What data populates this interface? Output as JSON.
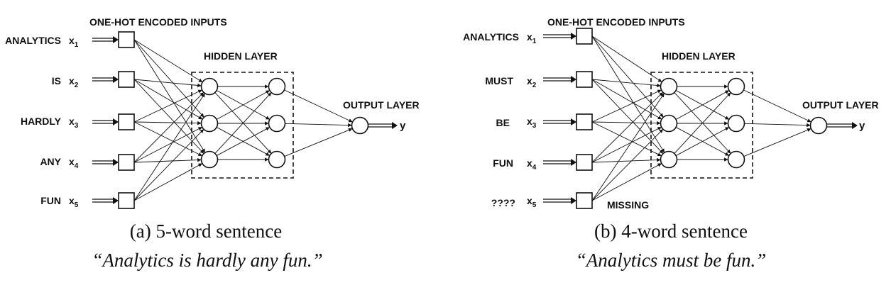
{
  "panels": [
    {
      "id": "a",
      "inputs_title": "ONE-HOT ENCODED  INPUTS",
      "hidden_title": "HIDDEN LAYER",
      "output_title": "OUTPUT LAYER",
      "output_symbol": "y",
      "words": [
        "ANALYTICS",
        "IS",
        "HARDLY",
        "ANY",
        "FUN"
      ],
      "x_symbols": [
        {
          "base": "x",
          "sub": "1"
        },
        {
          "base": "x",
          "sub": "2"
        },
        {
          "base": "x",
          "sub": "3"
        },
        {
          "base": "x",
          "sub": "4"
        },
        {
          "base": "x",
          "sub": "5"
        }
      ],
      "missing_label": "",
      "caption": "(a) 5-word sentence",
      "quote": "“Analytics is hardly any fun.”"
    },
    {
      "id": "b",
      "inputs_title": "ONE-HOT ENCODED INPUTS",
      "hidden_title": "HIDDEN LAYER",
      "output_title": "OUTPUT LAYER",
      "output_symbol": "y",
      "words": [
        "ANALYTICS",
        "MUST",
        "BE",
        "FUN",
        "????"
      ],
      "x_symbols": [
        {
          "base": "x",
          "sub": "1"
        },
        {
          "base": "x",
          "sub": "2"
        },
        {
          "base": "x",
          "sub": "3"
        },
        {
          "base": "x",
          "sub": "4"
        },
        {
          "base": "x",
          "sub": "5"
        }
      ],
      "missing_label": "MISSING",
      "caption": "(b) 4-word sentence",
      "quote": "“Analytics must be fun.”"
    }
  ]
}
